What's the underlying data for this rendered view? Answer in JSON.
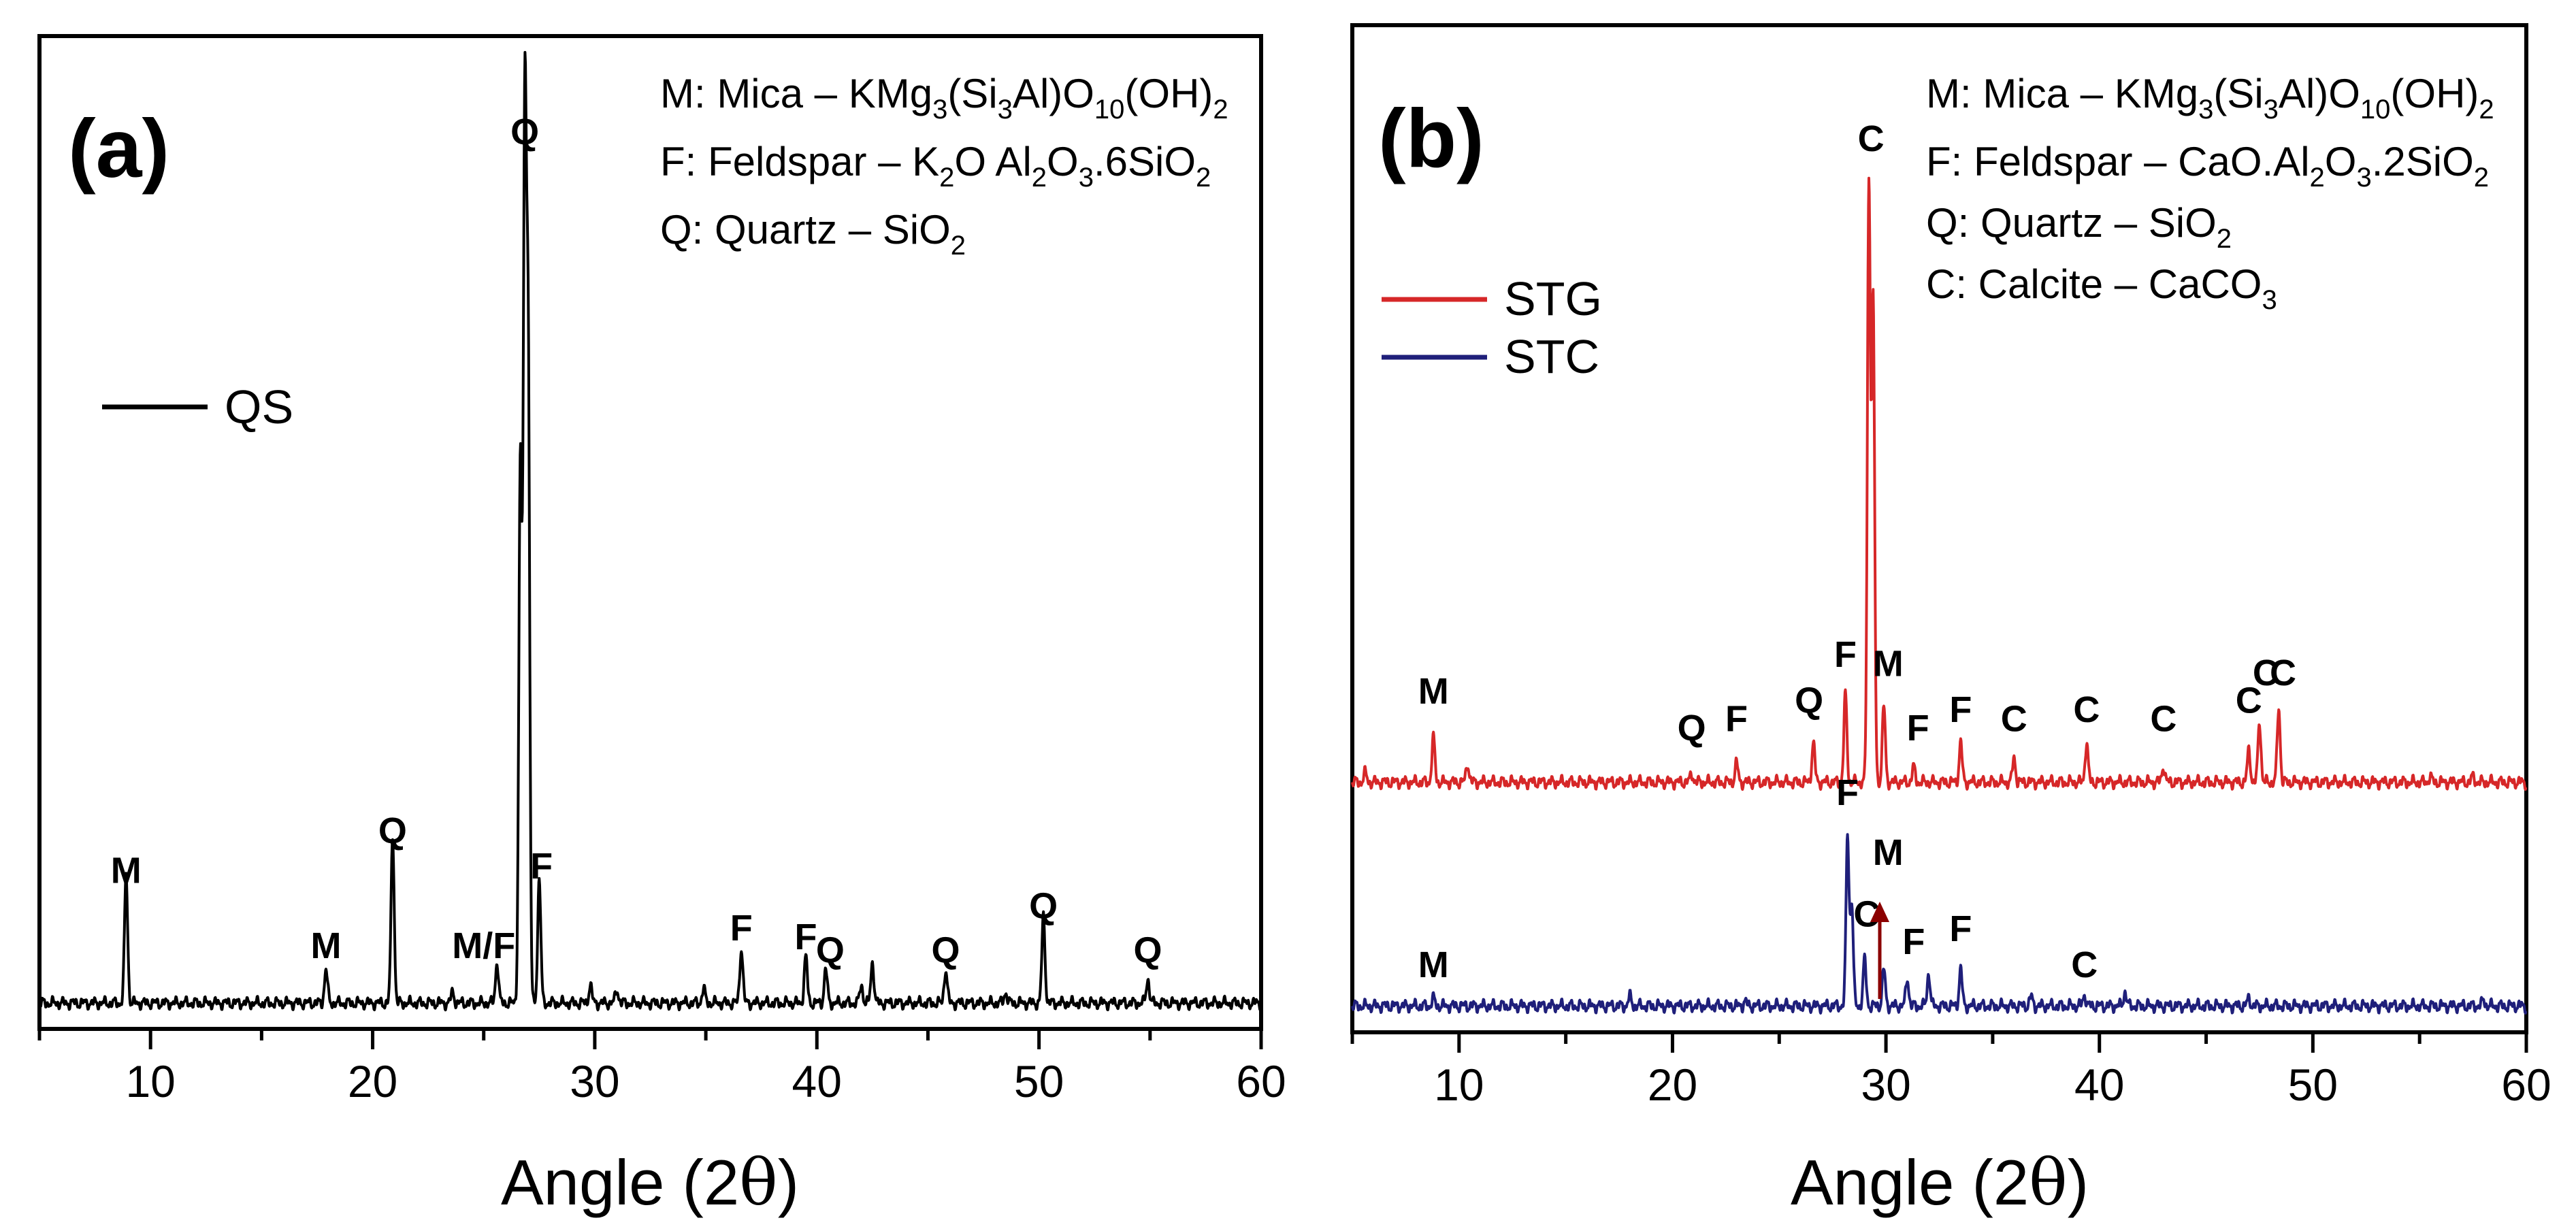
{
  "chart_data": [
    {
      "panel": "(a)",
      "type": "line",
      "xlabel_main": "Angle (2",
      "xlabel_theta": "θ",
      "xlabel_end": ")",
      "ylabel": "",
      "xlim": [
        5,
        60
      ],
      "ylim": [
        0,
        100
      ],
      "xticks": [
        10,
        20,
        30,
        40,
        50,
        60
      ],
      "legend_position": "left",
      "mineral_legend": [
        [
          "M: Mica – KMg",
          "3",
          "(Si",
          "3",
          "Al)O",
          "10",
          "(OH)",
          "2"
        ],
        [
          "F: Feldspar – K",
          "2",
          "O Al",
          "2",
          "O",
          "3",
          ".6SiO",
          "2"
        ],
        [
          "Q: Quartz – SiO",
          "2"
        ]
      ],
      "series": [
        {
          "name": "QS",
          "color": "#000000",
          "baseline": 2.0,
          "peaks": [
            [
              8.9,
              14.5
            ],
            [
              17.9,
              3.8
            ],
            [
              20.9,
              19
            ],
            [
              23.6,
              1.2
            ],
            [
              25.6,
              4.6
            ],
            [
              26.65,
              61
            ],
            [
              26.85,
              98
            ],
            [
              27.0,
              72
            ],
            [
              27.5,
              14
            ],
            [
              29.8,
              2
            ],
            [
              31.0,
              1.5
            ],
            [
              34.9,
              1.6
            ],
            [
              36.6,
              6.2
            ],
            [
              39.5,
              5.2
            ],
            [
              40.4,
              3.8
            ],
            [
              42.0,
              2
            ],
            [
              42.5,
              4.6
            ],
            [
              45.8,
              3.8
            ],
            [
              48.5,
              1.2
            ],
            [
              50.2,
              9.8
            ],
            [
              54.9,
              2.7
            ]
          ],
          "peak_labels": [
            {
              "label": "M",
              "x": 8.9,
              "y": 14.5
            },
            {
              "label": "M",
              "x": 17.9,
              "y": 6
            },
            {
              "label": "Q",
              "x": 20.9,
              "y": 19
            },
            {
              "label": "M/F",
              "x": 25.0,
              "y": 6
            },
            {
              "label": "Q",
              "x": 26.85,
              "y": 98
            },
            {
              "label": "F",
              "x": 27.6,
              "y": 15
            },
            {
              "label": "F",
              "x": 36.6,
              "y": 8
            },
            {
              "label": "F",
              "x": 39.5,
              "y": 7
            },
            {
              "label": "Q",
              "x": 40.6,
              "y": 5.5
            },
            {
              "label": "Q",
              "x": 45.8,
              "y": 5.5
            },
            {
              "label": "Q",
              "x": 50.2,
              "y": 10.5
            },
            {
              "label": "Q",
              "x": 54.9,
              "y": 5.5
            }
          ]
        }
      ]
    },
    {
      "panel": "(b)",
      "type": "line",
      "xlabel_main": "Angle (2",
      "xlabel_theta": "θ",
      "xlabel_end": ")",
      "ylabel": "",
      "xlim": [
        5,
        60
      ],
      "ylim": [
        0,
        100
      ],
      "xticks": [
        10,
        20,
        30,
        40,
        50,
        60
      ],
      "legend_position": "top-left",
      "mineral_legend": [
        [
          "M: Mica – KMg",
          "3",
          "(Si",
          "3",
          "Al)O",
          "10",
          "(OH)",
          "2"
        ],
        [
          "F: Feldspar – CaO.Al",
          "2",
          "O",
          "3",
          ".2SiO",
          "2"
        ],
        [
          "Q: Quartz – SiO",
          "2"
        ],
        [
          "C: Calcite – CaCO",
          "3"
        ]
      ],
      "series": [
        {
          "name": "STG",
          "color": "#d62728",
          "baseline": 26.5,
          "peaks": [
            [
              5.6,
              1.0
            ],
            [
              8.8,
              4.8
            ],
            [
              10.4,
              2.0
            ],
            [
              20.9,
              0.9
            ],
            [
              23.0,
              2.1
            ],
            [
              26.6,
              4.3
            ],
            [
              28.1,
              9.5
            ],
            [
              29.2,
              65
            ],
            [
              29.4,
              52
            ],
            [
              29.9,
              8.3
            ],
            [
              31.3,
              1.6
            ],
            [
              33.5,
              4.3
            ],
            [
              36.0,
              2.6
            ],
            [
              39.4,
              4.3
            ],
            [
              43.0,
              1.7
            ],
            [
              47.0,
              3.5
            ],
            [
              47.5,
              6.5
            ],
            [
              48.4,
              8.0
            ],
            [
              55.5,
              0.6
            ],
            [
              57.5,
              0.6
            ]
          ],
          "peak_labels": [
            {
              "label": "M",
              "x": 8.8,
              "y": 34
            },
            {
              "label": "Q",
              "x": 20.9,
              "y": 30
            },
            {
              "label": "F",
              "x": 23.0,
              "y": 31
            },
            {
              "label": "Q",
              "x": 26.4,
              "y": 33
            },
            {
              "label": "F",
              "x": 28.1,
              "y": 38
            },
            {
              "label": "C",
              "x": 29.3,
              "y": 94
            },
            {
              "label": "M",
              "x": 30.1,
              "y": 37
            },
            {
              "label": "F",
              "x": 31.5,
              "y": 30
            },
            {
              "label": "F",
              "x": 33.5,
              "y": 32
            },
            {
              "label": "C",
              "x": 36.0,
              "y": 31
            },
            {
              "label": "C",
              "x": 39.4,
              "y": 32
            },
            {
              "label": "C",
              "x": 43.0,
              "y": 31
            },
            {
              "label": "C",
              "x": 47.0,
              "y": 33
            },
            {
              "label": "C",
              "x": 47.8,
              "y": 36
            },
            {
              "label": "C",
              "x": 48.6,
              "y": 36
            }
          ]
        },
        {
          "name": "STC",
          "color": "#1f1f7a",
          "baseline": 2.2,
          "peaks": [
            [
              8.8,
              0.8
            ],
            [
              18.0,
              1.0
            ],
            [
              23.4,
              0.5
            ],
            [
              28.2,
              18.5
            ],
            [
              28.4,
              11
            ],
            [
              29.0,
              5
            ],
            [
              29.9,
              4
            ],
            [
              31.0,
              3
            ],
            [
              32.0,
              3.5
            ],
            [
              33.5,
              4
            ],
            [
              36.8,
              1
            ],
            [
              39.3,
              1.2
            ],
            [
              41.2,
              1.5
            ],
            [
              47.0,
              0.8
            ],
            [
              58.0,
              0.6
            ]
          ],
          "peak_labels": [
            {
              "label": "M",
              "x": 8.8,
              "y": 4.3
            },
            {
              "label": "F",
              "x": 28.2,
              "y": 23
            },
            {
              "label": "C",
              "x": 29.1,
              "y": 9.8
            },
            {
              "label": "M",
              "x": 30.1,
              "y": 16.5
            },
            {
              "label": "F",
              "x": 31.3,
              "y": 6.8
            },
            {
              "label": "F",
              "x": 33.5,
              "y": 8.2
            },
            {
              "label": "C",
              "x": 39.3,
              "y": 4.3
            }
          ]
        }
      ]
    }
  ]
}
